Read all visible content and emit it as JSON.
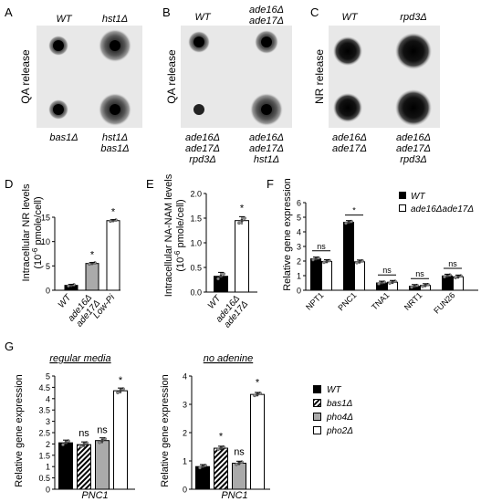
{
  "panels": {
    "A": {
      "letter": "A",
      "y_label": "QA release",
      "top_left": "WT",
      "top_right": "hst1Δ",
      "bottom_left": "bas1Δ",
      "bottom_right_1": "hst1Δ",
      "bottom_right_2": "bas1Δ"
    },
    "B": {
      "letter": "B",
      "y_label": "QA release",
      "top_left": "WT",
      "top_right_1": "ade16Δ",
      "top_right_2": "ade17Δ",
      "bottom_left_1": "ade16Δ",
      "bottom_left_2": "ade17Δ",
      "bottom_left_3": "rpd3Δ",
      "bottom_right_1": "ade16Δ",
      "bottom_right_2": "ade17Δ",
      "bottom_right_3": "hst1Δ"
    },
    "C": {
      "letter": "C",
      "y_label": "NR release",
      "top_left": "WT",
      "top_right": "rpd3Δ",
      "bottom_left_1": "ade16Δ",
      "bottom_left_2": "ade17Δ",
      "bottom_right_1": "ade16Δ",
      "bottom_right_2": "ade17Δ",
      "bottom_right_3": "rpd3Δ"
    },
    "D": {
      "letter": "D",
      "y_label_1": "Intracellular NR levels",
      "y_label_2": "(10",
      "y_label_exp": "-6",
      "y_label_3": " pmole/cell)",
      "ticks": [
        "0",
        "5",
        "10",
        "15"
      ],
      "cat_1": "WT",
      "cat_2a": "ade16Δ",
      "cat_2b": "ade17Δ",
      "cat_3": "Low-Pi",
      "sig": "*"
    },
    "E": {
      "letter": "E",
      "y_label_1": "Intracellular NA-NAM levels",
      "y_label_2": "(10",
      "y_label_exp": "-6",
      "y_label_3": " pmole/cell)",
      "ticks": [
        "0.0",
        "0.5",
        "1.0",
        "1.5",
        "2.0"
      ],
      "cat_1": "WT",
      "cat_2a": "ade16Δ",
      "cat_2b": "ade17Δ",
      "sig": "*"
    },
    "F": {
      "letter": "F",
      "y_label": "Relative gene expression",
      "ticks": [
        "0",
        "1",
        "2",
        "3",
        "4",
        "5",
        "6"
      ],
      "legend_1": "WT",
      "legend_2": "ade16Δade17Δ",
      "genes": [
        "NPT1",
        "PNC1",
        "TNA1",
        "NRT1",
        "FUN26"
      ],
      "sig_labels": [
        "ns",
        "*",
        "ns",
        "ns",
        "ns"
      ]
    },
    "G": {
      "letter": "G",
      "left_title": "regular media",
      "right_title": "no adenine",
      "y_label": "Relative gene expression",
      "left_ticks": [
        "0",
        "0.5",
        "1",
        "1.5",
        "2",
        "2.5",
        "3",
        "3.5",
        "4",
        "4.5",
        "5"
      ],
      "right_ticks": [
        "0",
        "1",
        "2",
        "3",
        "4"
      ],
      "x_label": "PNC1",
      "left_sig": [
        "ns",
        "ns",
        "*"
      ],
      "right_sig": [
        "*",
        "ns",
        "*"
      ],
      "legend": [
        "WT",
        "bas1Δ",
        "pho4Δ",
        "pho2Δ"
      ]
    }
  },
  "chart_data": [
    {
      "type": "bar",
      "panel": "D",
      "categories": [
        "WT",
        "ade16Δ ade17Δ",
        "Low-Pi"
      ],
      "values": [
        1.0,
        5.5,
        14.3
      ],
      "ylim": [
        0,
        15
      ]
    },
    {
      "type": "bar",
      "panel": "E",
      "categories": [
        "WT",
        "ade16Δ ade17Δ"
      ],
      "values": [
        0.32,
        1.45
      ],
      "ylim": [
        0,
        2.0
      ]
    },
    {
      "type": "bar",
      "panel": "F",
      "categories": [
        "NPT1",
        "PNC1",
        "TNA1",
        "NRT1",
        "FUN26"
      ],
      "series": [
        {
          "name": "WT",
          "values": [
            2.15,
            4.65,
            0.5,
            0.27,
            0.98
          ]
        },
        {
          "name": "ade16Δade17Δ",
          "values": [
            1.97,
            1.95,
            0.55,
            0.33,
            0.92
          ]
        }
      ],
      "ylim": [
        0,
        6
      ]
    },
    {
      "type": "bar",
      "panel": "G-left",
      "categories": [
        "WT",
        "bas1Δ",
        "pho4Δ",
        "pho2Δ"
      ],
      "values": [
        2.05,
        1.97,
        2.15,
        4.35
      ],
      "ylim": [
        0,
        5
      ]
    },
    {
      "type": "bar",
      "panel": "G-right",
      "categories": [
        "WT",
        "bas1Δ",
        "pho4Δ",
        "pho2Δ"
      ],
      "values": [
        0.8,
        1.45,
        0.92,
        3.35
      ],
      "ylim": [
        0,
        4
      ]
    }
  ]
}
